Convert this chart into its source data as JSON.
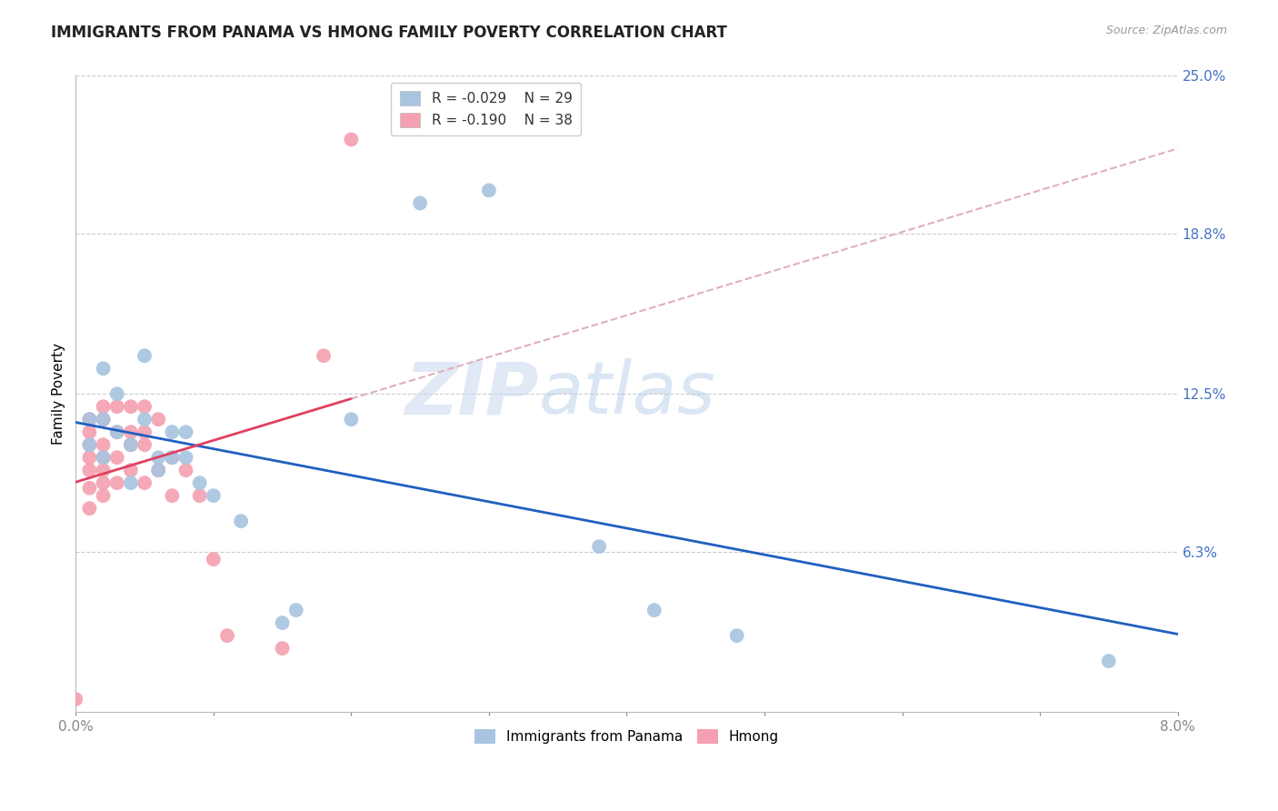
{
  "title": "IMMIGRANTS FROM PANAMA VS HMONG FAMILY POVERTY CORRELATION CHART",
  "source": "Source: ZipAtlas.com",
  "ylabel": "Family Poverty",
  "x_lim": [
    0.0,
    0.08
  ],
  "y_lim": [
    0.0,
    0.25
  ],
  "series1_color": "#a8c4e0",
  "series2_color": "#f4a0b0",
  "trendline1_color": "#2060c0",
  "trendline2_color": "#e04060",
  "trendline2_dash_color": "#e0b0bc",
  "watermark_zip": "ZIP",
  "watermark_atlas": "atlas",
  "background_color": "#ffffff",
  "grid_color": "#cccccc",
  "axis_label_color": "#4472c4",
  "panama_x": [
    0.001,
    0.001,
    0.002,
    0.002,
    0.002,
    0.003,
    0.003,
    0.004,
    0.004,
    0.005,
    0.005,
    0.006,
    0.006,
    0.007,
    0.007,
    0.008,
    0.008,
    0.009,
    0.01,
    0.012,
    0.015,
    0.016,
    0.02,
    0.025,
    0.03,
    0.038,
    0.042,
    0.048,
    0.075
  ],
  "panama_y": [
    0.115,
    0.105,
    0.135,
    0.115,
    0.1,
    0.125,
    0.11,
    0.105,
    0.09,
    0.14,
    0.115,
    0.1,
    0.095,
    0.11,
    0.1,
    0.11,
    0.1,
    0.09,
    0.085,
    0.075,
    0.035,
    0.04,
    0.115,
    0.2,
    0.205,
    0.065,
    0.04,
    0.03,
    0.02
  ],
  "hmong_x": [
    0.0,
    0.001,
    0.001,
    0.001,
    0.001,
    0.001,
    0.001,
    0.001,
    0.002,
    0.002,
    0.002,
    0.002,
    0.002,
    0.002,
    0.002,
    0.003,
    0.003,
    0.003,
    0.003,
    0.004,
    0.004,
    0.004,
    0.004,
    0.005,
    0.005,
    0.005,
    0.005,
    0.006,
    0.006,
    0.007,
    0.007,
    0.008,
    0.009,
    0.01,
    0.011,
    0.015,
    0.018,
    0.02
  ],
  "hmong_y": [
    0.005,
    0.115,
    0.11,
    0.105,
    0.1,
    0.095,
    0.088,
    0.08,
    0.12,
    0.115,
    0.105,
    0.1,
    0.095,
    0.09,
    0.085,
    0.12,
    0.11,
    0.1,
    0.09,
    0.12,
    0.11,
    0.105,
    0.095,
    0.12,
    0.11,
    0.105,
    0.09,
    0.115,
    0.095,
    0.1,
    0.085,
    0.095,
    0.085,
    0.06,
    0.03,
    0.025,
    0.14,
    0.225
  ]
}
